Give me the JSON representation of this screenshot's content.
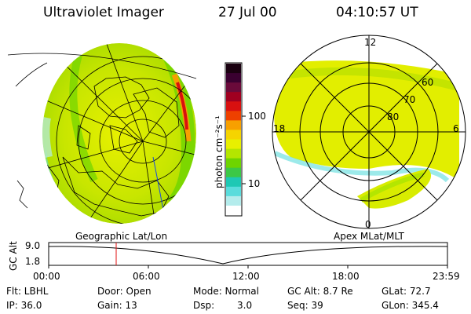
{
  "header": {
    "instrument": "Ultraviolet Imager",
    "date": "27 Jul 00",
    "time": "04:10:57 UT"
  },
  "colorbar": {
    "label": "photon cm⁻²s⁻¹",
    "ticks": [
      "100",
      "10"
    ],
    "colors": [
      "#1a0010",
      "#3a0030",
      "#6a0a3a",
      "#a00020",
      "#d81010",
      "#ee4000",
      "#f7a000",
      "#f5d400",
      "#e8f000",
      "#b4e600",
      "#6ed400",
      "#3cc846",
      "#1ec8b4",
      "#5adcdc",
      "#b4ecec",
      "#ffffff"
    ]
  },
  "left_panel": {
    "caption": "Geographic Lat/Lon"
  },
  "right_panel": {
    "caption": "Apex MLat/MLT",
    "mlt_labels": {
      "top": "12",
      "right": "6",
      "bottom": "0",
      "left": "18"
    },
    "lat_labels": [
      "60",
      "70",
      "80"
    ]
  },
  "timeline": {
    "ylabel": "GC Alt",
    "y_ticks": [
      "9.0",
      "1.8"
    ],
    "x_ticks": [
      "00:00",
      "06:00",
      "12:00",
      "18:00",
      "23:59"
    ],
    "marker_time": "04:10:57"
  },
  "info": {
    "flt": "Flt: LBHL",
    "ip": "IP: 36.0",
    "door": "Door: Open",
    "gain": "Gain: 13",
    "mode": "Mode: Normal",
    "dsp_label": "Dsp:",
    "dsp_value": "3.0",
    "gcalt": "GC Alt: 8.7 Re",
    "seq": "Seq: 39",
    "glat": "GLat: 72.7",
    "glon": "GLon: 345.4"
  }
}
